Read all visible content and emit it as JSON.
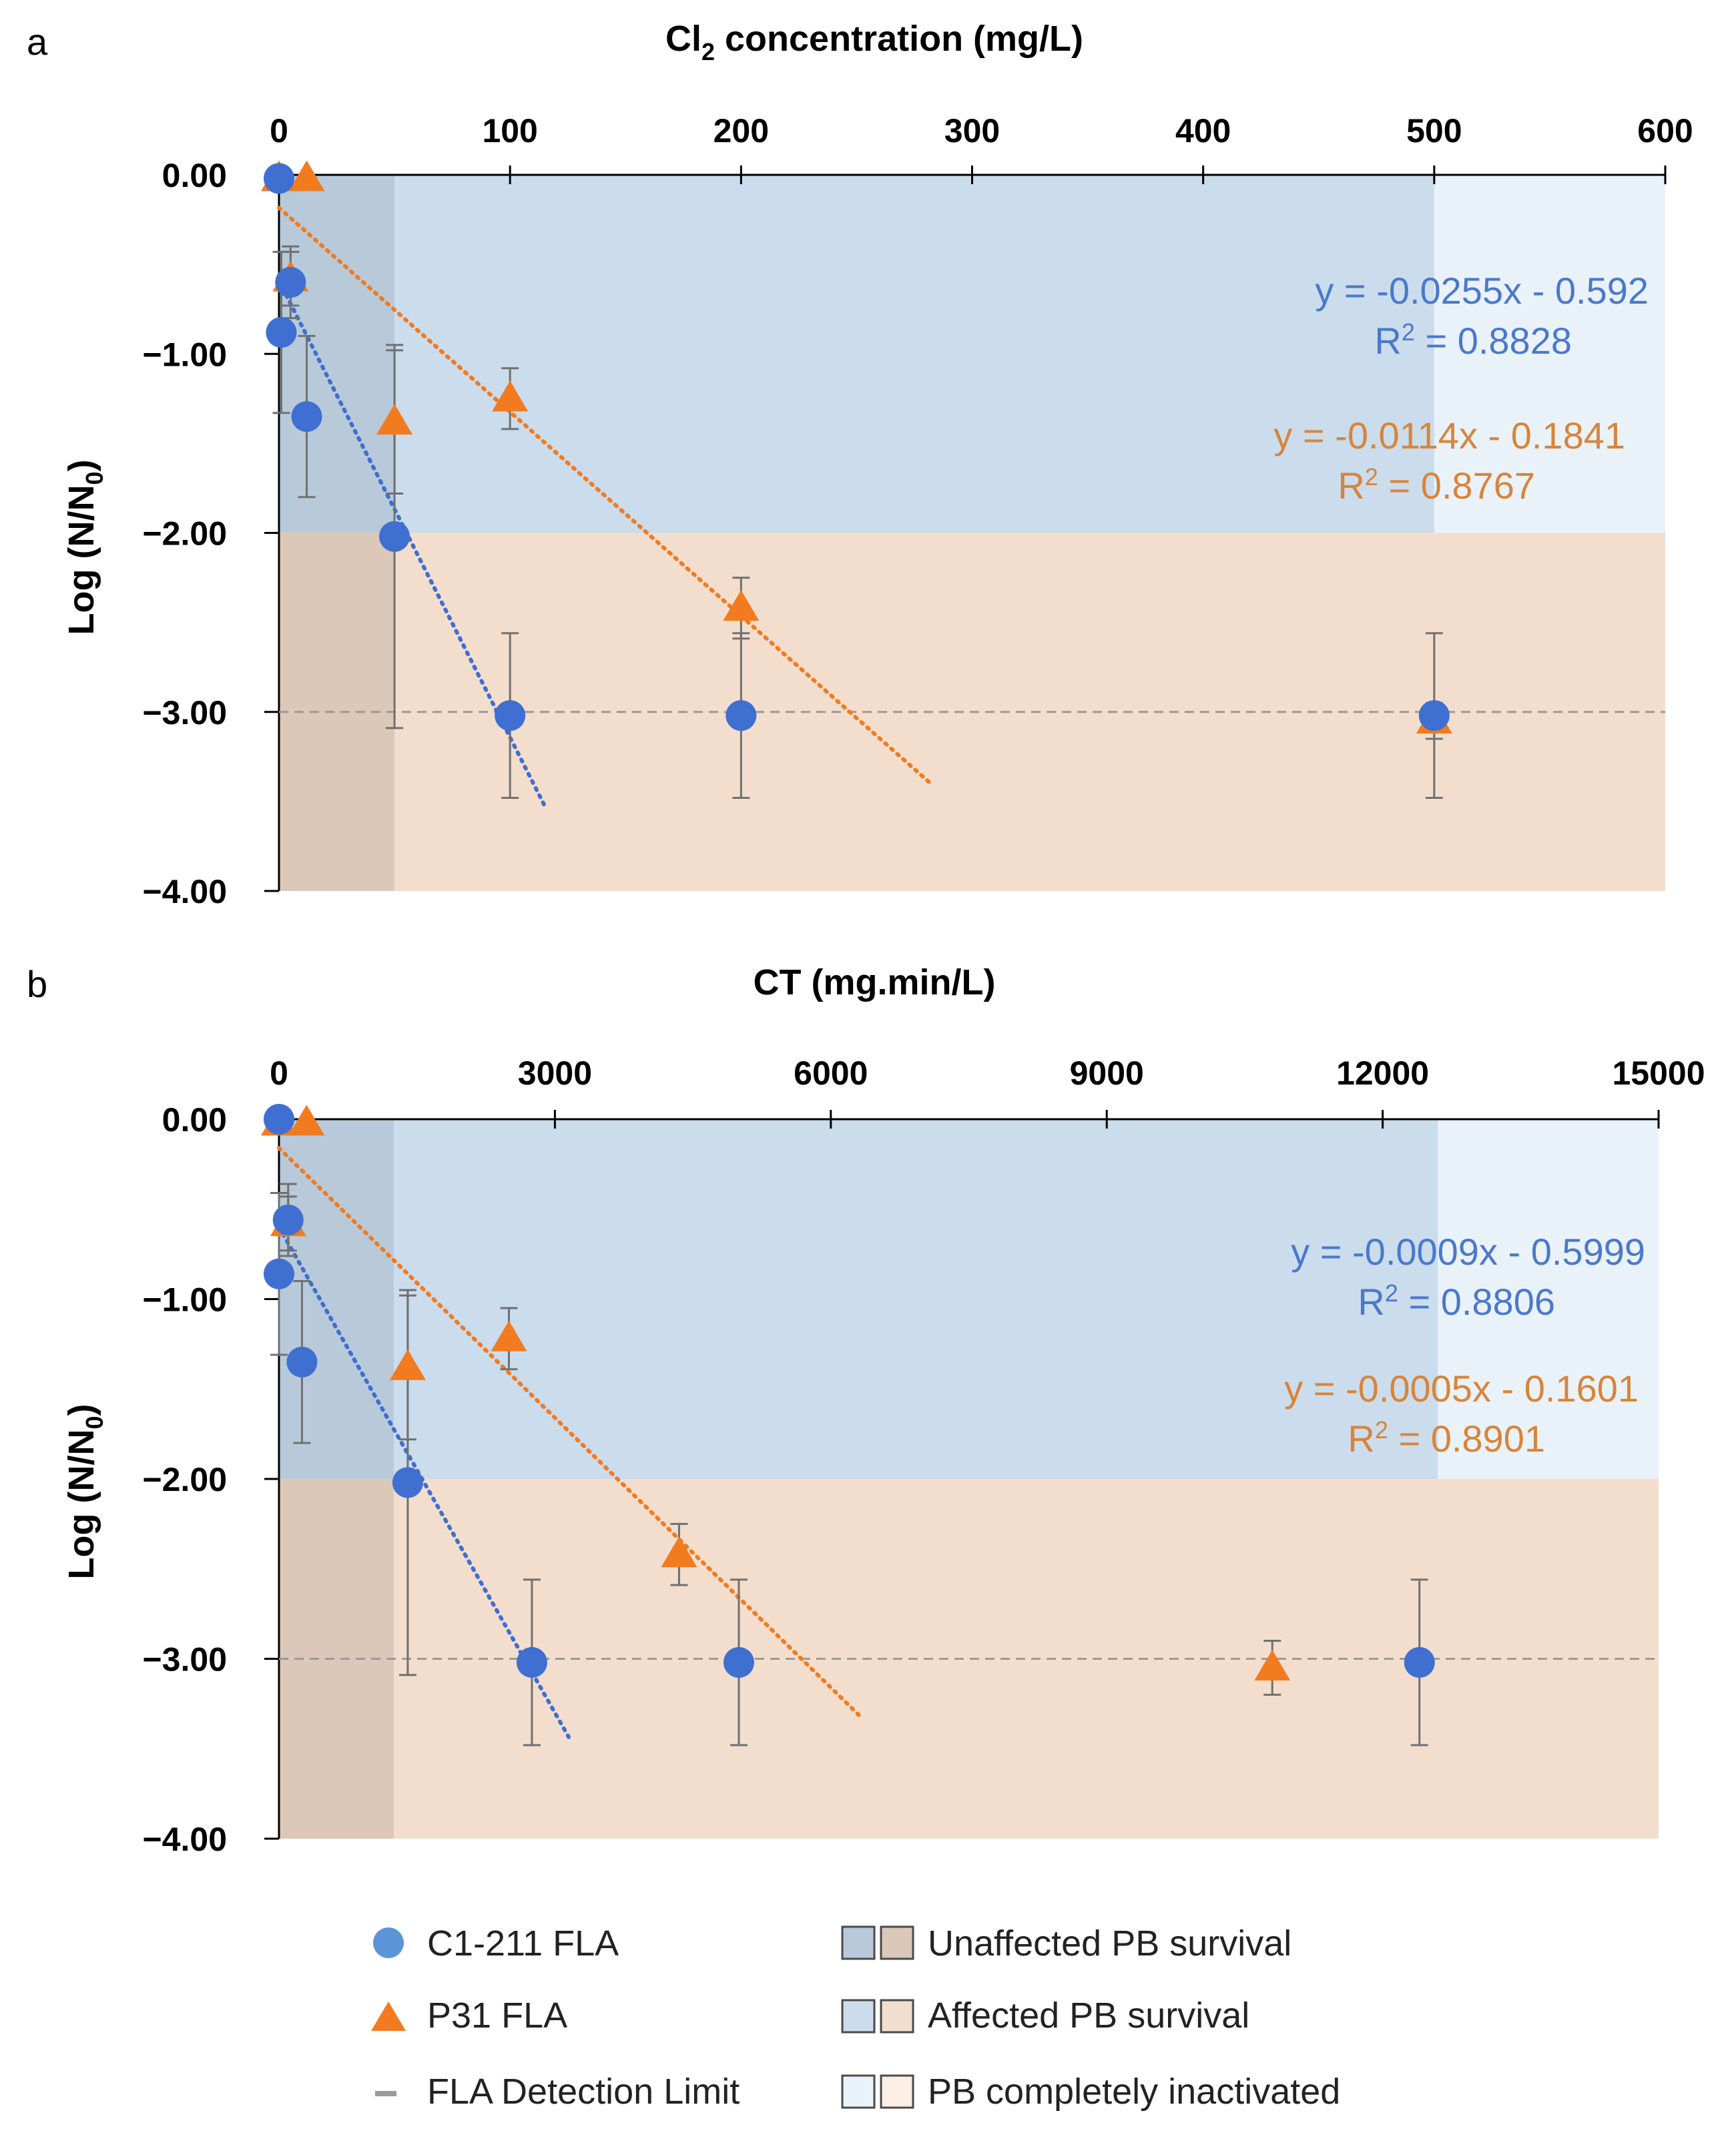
{
  "colors": {
    "blue_series": "#3f6fd0",
    "orange_series": "#f27b20",
    "blue_eq": "#4a78cc",
    "orange_eq": "#d8843a",
    "unaffected_blue": "#b8cad9",
    "unaffected_orange": "#dcc8b8",
    "affected_blue": "#cbdcec",
    "affected_orange": "#f3dece",
    "complete_blue": "#eaf2f9",
    "complete_orange": "#fbeee4",
    "error_bar": "#707070",
    "detection_limit": "#9a9a9a",
    "axis": "#000000"
  },
  "legend": {
    "series1": "C1-211 FLA",
    "series2": "P31 FLA",
    "detection": "FLA Detection Limit",
    "zone_unaffected": "Unaffected PB survival",
    "zone_affected": "Affected PB survival",
    "zone_complete": "PB completely inactivated"
  },
  "chart_data": [
    {
      "panel": "a",
      "type": "scatter",
      "title": "Cl2 concentration (mg/L)",
      "xlabel_main": "Cl",
      "xlabel_sub": "2",
      "xlabel_rest": " concentration (mg/L)",
      "ylabel_main": "Log (N/N",
      "ylabel_sub": "0",
      "ylabel_rest": ")",
      "xlim": [
        0,
        600
      ],
      "ylim": [
        -4,
        0
      ],
      "x_ticks": [
        0,
        100,
        200,
        300,
        400,
        500,
        600
      ],
      "x_tick_labels": [
        "0",
        "100",
        "200",
        "300",
        "400",
        "500",
        "600"
      ],
      "y_ticks": [
        0,
        -1,
        -2,
        -3,
        -4
      ],
      "y_tick_labels": [
        "0.00",
        "−1.00",
        "−2.00",
        "−3.00",
        "−4.00"
      ],
      "detection_limit": -3.0,
      "zones": {
        "unaffected_x_max": 50,
        "affected_x_max": 500,
        "threshold_y": -2.0
      },
      "series": [
        {
          "name": "C1-211 FLA",
          "marker": "circle",
          "points": [
            {
              "x": 0,
              "y": -0.02,
              "err": 0.0
            },
            {
              "x": 5,
              "y": -0.6,
              "err": 0.2
            },
            {
              "x": 1,
              "y": -0.88,
              "err": 0.45
            },
            {
              "x": 12,
              "y": -1.35,
              "err": 0.45
            },
            {
              "x": 50,
              "y": -2.02,
              "err": 1.07
            },
            {
              "x": 100,
              "y": -3.02,
              "err": 0.46
            },
            {
              "x": 200,
              "y": -3.02,
              "err": 0.46
            },
            {
              "x": 500,
              "y": -3.02,
              "err": 0.46
            }
          ],
          "fit": {
            "slope": -0.0255,
            "intercept": -0.592,
            "x_range": [
              0,
              115
            ]
          }
        },
        {
          "name": "P31 FLA",
          "marker": "triangle",
          "points": [
            {
              "x": 0,
              "y": -0.02,
              "err": 0.0
            },
            {
              "x": 12,
              "y": -0.02,
              "err": 0.0
            },
            {
              "x": 5,
              "y": -0.58,
              "err": 0.15
            },
            {
              "x": 50,
              "y": -1.38,
              "err": 0.4
            },
            {
              "x": 100,
              "y": -1.25,
              "err": 0.17
            },
            {
              "x": 200,
              "y": -2.42,
              "err": 0.17
            },
            {
              "x": 500,
              "y": -3.05,
              "err": 0.1
            }
          ],
          "fit": {
            "slope": -0.0114,
            "intercept": -0.1841,
            "x_range": [
              0,
              283
            ]
          }
        }
      ],
      "annotations": [
        {
          "series": "C1-211 FLA",
          "equation": "y = -0.0255x - 0.592",
          "r2_label": "R",
          "r2_sup": "2",
          "r2_value": " = 0.8828"
        },
        {
          "series": "P31 FLA",
          "equation": "y = -0.0114x - 0.1841",
          "r2_label": "R",
          "r2_sup": "2",
          "r2_value": " = 0.8767"
        }
      ]
    },
    {
      "panel": "b",
      "type": "scatter",
      "title": "CT (mg.min/L)",
      "xlabel_main": "CT (mg.min/L)",
      "xlabel_sub": "",
      "xlabel_rest": "",
      "ylabel_main": "Log (N/N",
      "ylabel_sub": "0",
      "ylabel_rest": ")",
      "xlim": [
        0,
        15000
      ],
      "ylim": [
        -4,
        0
      ],
      "x_ticks": [
        0,
        3000,
        6000,
        9000,
        12000,
        15000
      ],
      "x_tick_labels": [
        "0",
        "3000",
        "6000",
        "9000",
        "12000",
        "15000"
      ],
      "y_ticks": [
        0,
        -1,
        -2,
        -3,
        -4
      ],
      "y_tick_labels": [
        "0.00",
        "−1.00",
        "−2.00",
        "−3.00",
        "−4.00"
      ],
      "detection_limit": -3.0,
      "zones": {
        "unaffected_x_max": 1250,
        "affected_x_max": 12600,
        "threshold_y": -2.0
      },
      "series": [
        {
          "name": "C1-211 FLA",
          "marker": "circle",
          "points": [
            {
              "x": 0,
              "y": 0.0,
              "err": 0.0
            },
            {
              "x": 100,
              "y": -0.56,
              "err": 0.2
            },
            {
              "x": 0,
              "y": -0.86,
              "err": 0.45
            },
            {
              "x": 250,
              "y": -1.35,
              "err": 0.45
            },
            {
              "x": 1400,
              "y": -2.02,
              "err": 1.07
            },
            {
              "x": 2750,
              "y": -3.02,
              "err": 0.46
            },
            {
              "x": 5000,
              "y": -3.02,
              "err": 0.46
            },
            {
              "x": 12400,
              "y": -3.02,
              "err": 0.46
            }
          ],
          "fit": {
            "slope": -0.0009,
            "intercept": -0.5999,
            "x_range": [
              0,
              3150
            ]
          }
        },
        {
          "name": "P31 FLA",
          "marker": "triangle",
          "points": [
            {
              "x": 0,
              "y": -0.02,
              "err": 0.0
            },
            {
              "x": 300,
              "y": -0.02,
              "err": 0.0
            },
            {
              "x": 100,
              "y": -0.58,
              "err": 0.15
            },
            {
              "x": 1400,
              "y": -1.38,
              "err": 0.4
            },
            {
              "x": 2500,
              "y": -1.22,
              "err": 0.17
            },
            {
              "x": 4350,
              "y": -2.42,
              "err": 0.17
            },
            {
              "x": 10800,
              "y": -3.05,
              "err": 0.15
            }
          ],
          "fit": {
            "slope": -0.0005,
            "intercept": -0.1601,
            "x_range": [
              0,
              6350
            ]
          }
        }
      ],
      "annotations": [
        {
          "series": "C1-211 FLA",
          "equation": "y = -0.0009x - 0.5999",
          "r2_label": "R",
          "r2_sup": "2",
          "r2_value": " = 0.8806"
        },
        {
          "series": "P31 FLA",
          "equation": "y = -0.0005x - 0.1601",
          "r2_label": "R",
          "r2_sup": "2",
          "r2_value": " = 0.8901"
        }
      ]
    }
  ]
}
